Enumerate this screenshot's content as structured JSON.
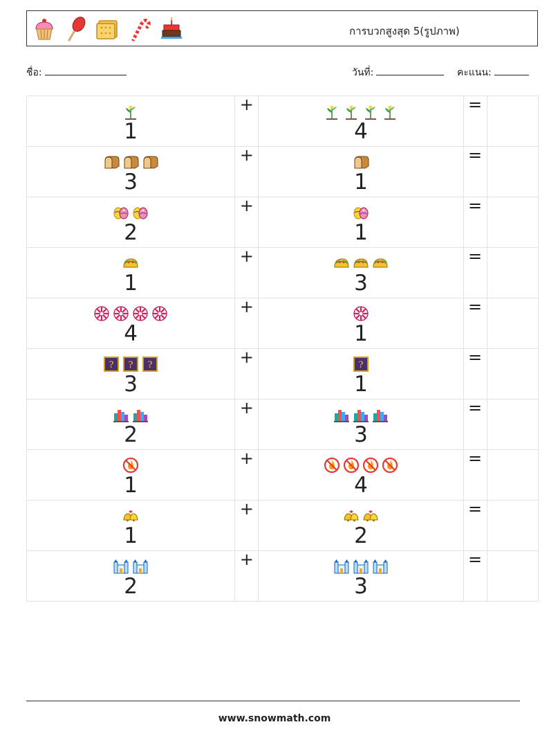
{
  "header": {
    "title": "การบวกสูงสุด 5(รูปภาพ)",
    "icons": [
      "cupcake-icon",
      "popsicle-icon",
      "biscuit-icon",
      "candy-cane-icon",
      "birthday-cake-icon"
    ]
  },
  "info": {
    "name_label": "ชื่อ:",
    "date_label": "วันที่:",
    "score_label": "คะแนน:"
  },
  "operators": {
    "plus": "+",
    "equals": "="
  },
  "rows": [
    {
      "a": "1",
      "a_icon": "plant-sprout-icon",
      "b": "4",
      "b_icon": "plant-sprout-icon"
    },
    {
      "a": "3",
      "a_icon": "bread-loaf-icon",
      "b": "1",
      "b_icon": "bread-loaf-icon"
    },
    {
      "a": "2",
      "a_icon": "easter-eggs-icon",
      "b": "1",
      "b_icon": "easter-eggs-icon"
    },
    {
      "a": "1",
      "a_icon": "taco-icon",
      "b": "3",
      "b_icon": "taco-icon"
    },
    {
      "a": "4",
      "a_icon": "peppermint-candy-icon",
      "b": "1",
      "b_icon": "peppermint-candy-icon"
    },
    {
      "a": "3",
      "a_icon": "mystery-box-icon",
      "b": "1",
      "b_icon": "mystery-box-icon"
    },
    {
      "a": "2",
      "a_icon": "city-buildings-icon",
      "b": "3",
      "b_icon": "city-buildings-icon"
    },
    {
      "a": "1",
      "a_icon": "no-fire-icon",
      "b": "4",
      "b_icon": "no-fire-icon"
    },
    {
      "a": "1",
      "a_icon": "golden-bells-icon",
      "b": "2",
      "b_icon": "golden-bells-icon"
    },
    {
      "a": "2",
      "a_icon": "castle-icon",
      "b": "3",
      "b_icon": "castle-icon"
    }
  ],
  "footer": {
    "url": "www.snowmath.com"
  }
}
